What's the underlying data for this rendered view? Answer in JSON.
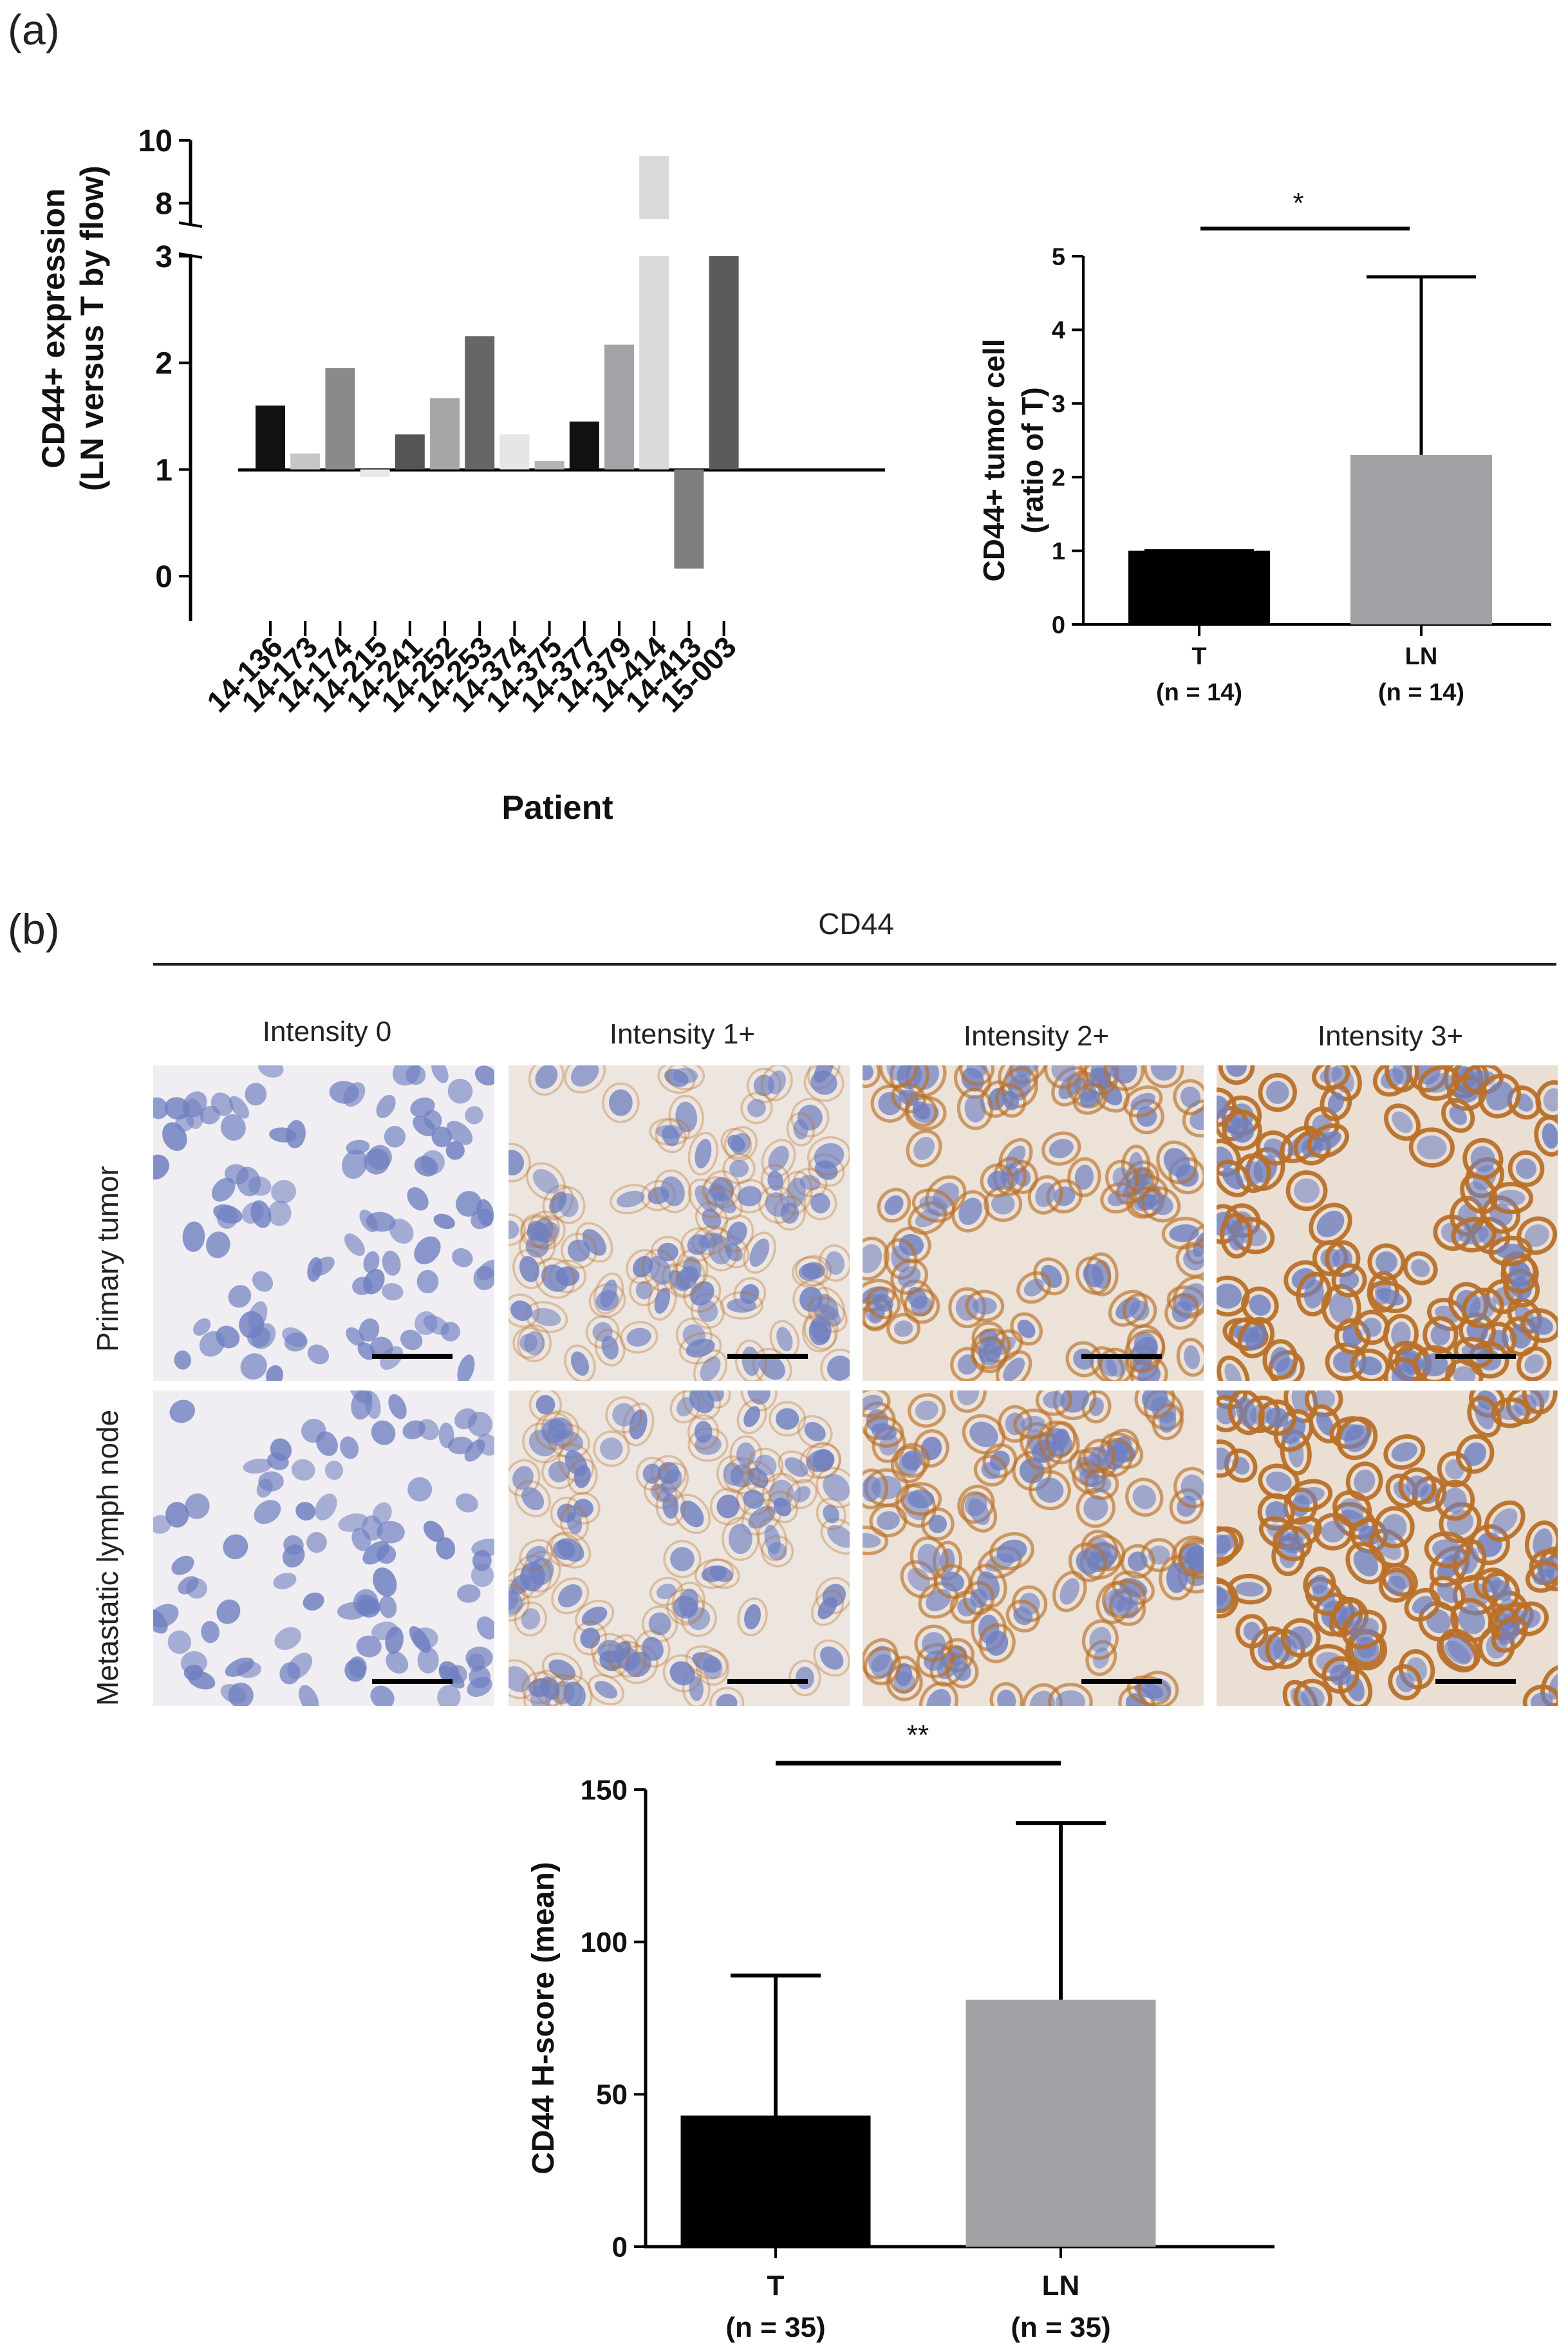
{
  "panels": {
    "a_label": "(a)",
    "b_label": "(b)"
  },
  "panel_b": {
    "marker": "CD44",
    "columns": [
      "Intensity 0",
      "Intensity 1+",
      "Intensity 2+",
      "Intensity 3+"
    ],
    "rows": [
      "Primary tumor",
      "Metastatic lymph node"
    ],
    "colors": {
      "hematoxylin": "#6f7fc0",
      "dab": "#b8702a",
      "background": "#ece8ec"
    }
  },
  "chart_data": [
    {
      "type": "bar",
      "ylabel": [
        "CD44+ expression",
        "(LN versus T by flow)"
      ],
      "xlabel": "Patient",
      "baseline": 1,
      "categories": [
        "14-136",
        "14-173",
        "14-174",
        "14-215",
        "14-241",
        "14-252",
        "14-253",
        "14-374",
        "14-375",
        "14-377",
        "14-379",
        "14-414",
        "14-413",
        "15-003"
      ],
      "values": [
        1.6,
        1.15,
        1.95,
        0.93,
        1.33,
        1.67,
        2.25,
        1.33,
        1.08,
        1.45,
        2.17,
        9.5,
        0.07,
        3.0
      ],
      "bar_colors": [
        "#111111",
        "#c6c6c8",
        "#8a8a8a",
        "#e8e8ea",
        "#555555",
        "#a7a7aa",
        "#666666",
        "#e6e6e8",
        "#b4b4b6",
        "#111111",
        "#a4a4a8",
        "#d9d9db",
        "#7e7e7e",
        "#5a5a5a"
      ],
      "yaxis_lower": {
        "range": [
          0,
          3
        ],
        "ticks": [
          "0",
          "1",
          "2",
          "3"
        ]
      },
      "yaxis_upper": {
        "range": [
          7.5,
          10
        ],
        "ticks": [
          "8",
          "10"
        ]
      }
    },
    {
      "type": "bar",
      "ylabel": [
        "CD44+ tumor cell",
        "(ratio of T)"
      ],
      "categories": [
        "T",
        "LN"
      ],
      "n_labels": [
        "(n = 14)",
        "(n = 14)"
      ],
      "values": [
        1.0,
        2.3
      ],
      "error_upper": [
        1.0,
        4.72
      ],
      "colors": [
        "#000000",
        "#a2a2a6"
      ],
      "ylim": [
        0,
        5
      ],
      "yticks": [
        "0",
        "1",
        "2",
        "3",
        "4",
        "5"
      ],
      "significance": "*"
    },
    {
      "type": "bar",
      "ylabel": [
        "CD44 H-score (mean)"
      ],
      "categories": [
        "T",
        "LN"
      ],
      "n_labels": [
        "(n = 35)",
        "(n = 35)"
      ],
      "values": [
        43,
        81
      ],
      "error_upper": [
        89,
        139
      ],
      "colors": [
        "#000000",
        "#a2a2a6"
      ],
      "ylim": [
        0,
        150
      ],
      "yticks": [
        "0",
        "50",
        "100",
        "150"
      ],
      "significance": "**"
    }
  ]
}
